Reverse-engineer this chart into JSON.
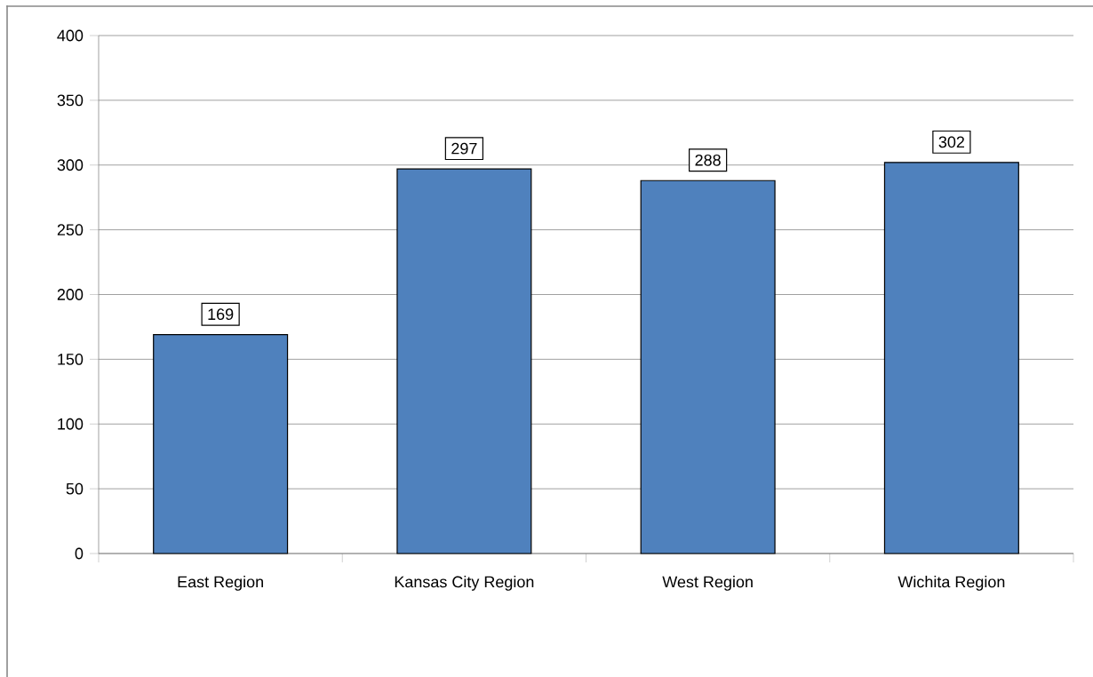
{
  "chart_data": {
    "type": "bar",
    "categories": [
      "East Region",
      "Kansas City Region",
      "West Region",
      "Wichita Region"
    ],
    "values": [
      169,
      297,
      288,
      302
    ],
    "color": "#4f81bd",
    "ylim": [
      0,
      400
    ],
    "yticks": [
      0,
      50,
      100,
      150,
      200,
      250,
      300,
      350,
      400
    ],
    "grid": "y",
    "data_labels": true
  }
}
